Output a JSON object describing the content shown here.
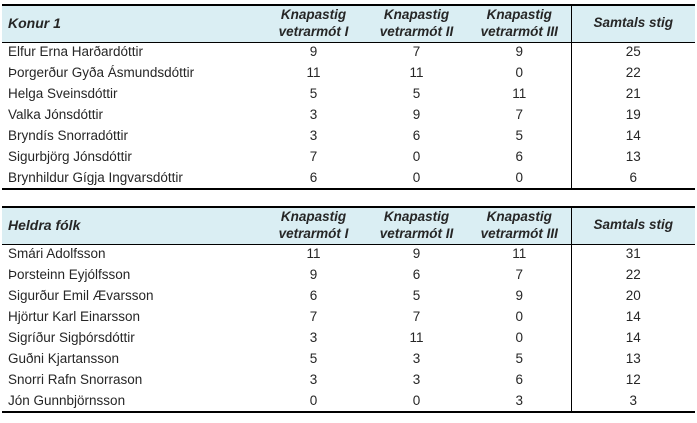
{
  "columns": [
    {
      "line1": "Knapastig",
      "line2": "vetrarmót I"
    },
    {
      "line1": "Knapastig",
      "line2": "vetrarmót II"
    },
    {
      "line1": "Knapastig",
      "line2": "vetrarmót III"
    },
    {
      "line1": "Samtals stig",
      "line2": ""
    }
  ],
  "style": {
    "header_bg": "#daeef3",
    "border_color": "#000000",
    "text_color": "#262626"
  },
  "sections": [
    {
      "title": "Konur 1",
      "rows": [
        {
          "name": "Elfur Erna Harðardóttir",
          "scores": [
            9,
            7,
            9
          ],
          "total": 25
        },
        {
          "name": "Þorgerður Gyða Ásmundsdóttir",
          "scores": [
            11,
            11,
            0
          ],
          "total": 22
        },
        {
          "name": "Helga Sveinsdóttir",
          "scores": [
            5,
            5,
            11
          ],
          "total": 21
        },
        {
          "name": "Valka Jónsdóttir",
          "scores": [
            3,
            9,
            7
          ],
          "total": 19
        },
        {
          "name": "Bryndís Snorradóttir",
          "scores": [
            3,
            6,
            5
          ],
          "total": 14
        },
        {
          "name": "Sigurbjörg Jónsdóttir",
          "scores": [
            7,
            0,
            6
          ],
          "total": 13
        },
        {
          "name": "Brynhildur Gígja Ingvarsdóttir",
          "scores": [
            6,
            0,
            0
          ],
          "total": 6
        }
      ]
    },
    {
      "title": "Heldra fólk",
      "rows": [
        {
          "name": "Smári Adolfsson",
          "scores": [
            11,
            9,
            11
          ],
          "total": 31
        },
        {
          "name": "Þorsteinn Eyjólfsson",
          "scores": [
            9,
            6,
            7
          ],
          "total": 22
        },
        {
          "name": "Sigurður Emil Ævarsson",
          "scores": [
            6,
            5,
            9
          ],
          "total": 20
        },
        {
          "name": "Hjörtur Karl Einarsson",
          "scores": [
            7,
            7,
            0
          ],
          "total": 14
        },
        {
          "name": "Sigríður Sigþórsdóttir",
          "scores": [
            3,
            11,
            0
          ],
          "total": 14
        },
        {
          "name": "Guðni Kjartansson",
          "scores": [
            5,
            3,
            5
          ],
          "total": 13
        },
        {
          "name": "Snorri Rafn Snorrason",
          "scores": [
            3,
            3,
            6
          ],
          "total": 12
        },
        {
          "name": "Jón Gunnbjörnsson",
          "scores": [
            0,
            0,
            3
          ],
          "total": 3
        }
      ]
    }
  ]
}
